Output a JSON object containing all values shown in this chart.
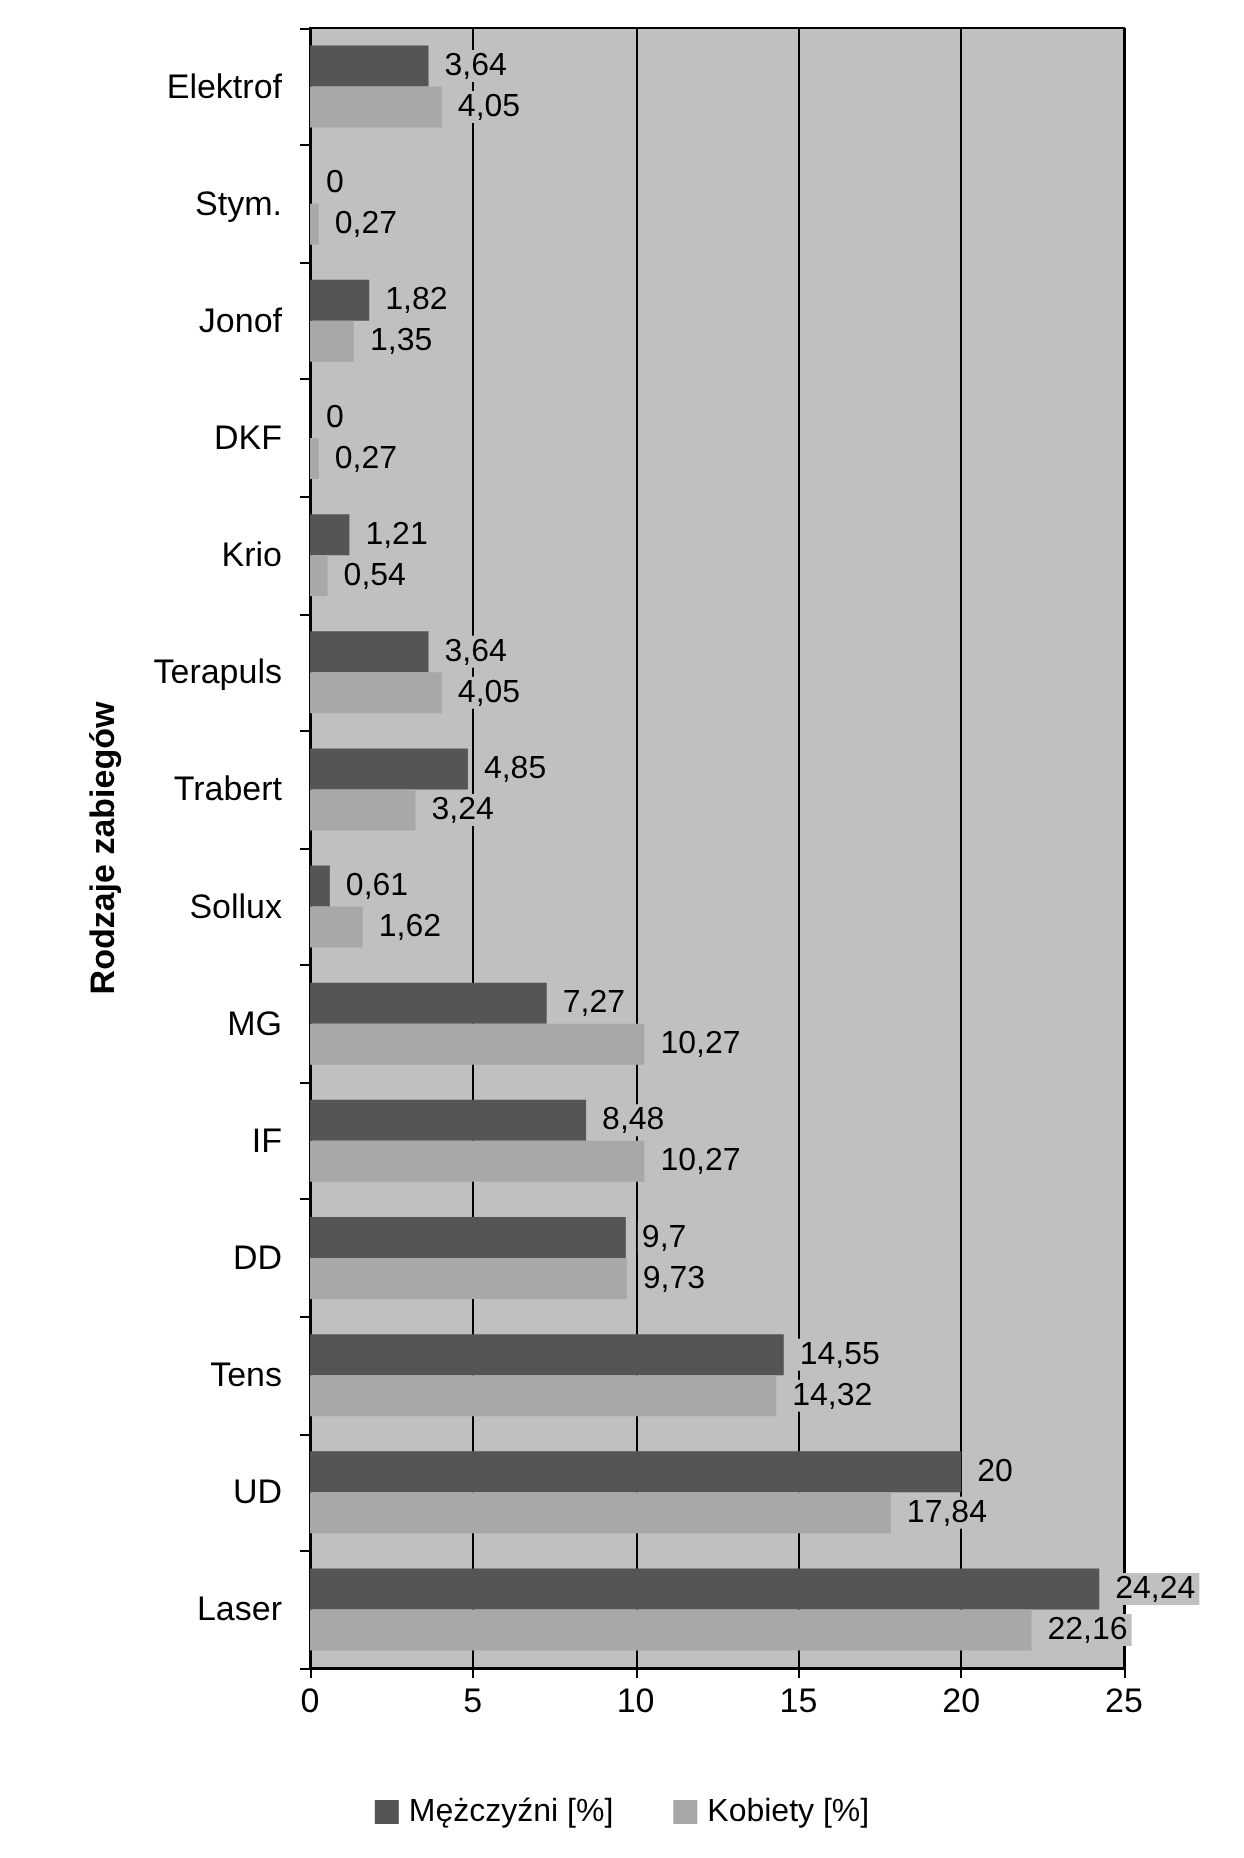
{
  "chart_data": {
    "type": "bar",
    "orientation": "horizontal",
    "ylabel": "Rodzaje zabiegów",
    "categories": [
      "Elektrof",
      "Stym.",
      "Jonof",
      "DKF",
      "Krio",
      "Terapuls",
      "Trabert",
      "Sollux",
      "MG",
      "IF",
      "DD",
      "Tens",
      "UD",
      "Laser"
    ],
    "series": [
      {
        "name": "Mężczyźni [%]",
        "color": "#555555",
        "values": [
          3.64,
          0,
          1.82,
          0,
          1.21,
          3.64,
          4.85,
          0.61,
          7.27,
          8.48,
          9.7,
          14.55,
          20,
          24.24
        ],
        "value_labels": [
          "3,64",
          "0",
          "1,82",
          "0",
          "1,21",
          "3,64",
          "4,85",
          "0,61",
          "7,27",
          "8,48",
          "9,7",
          "14,55",
          "20",
          "24,24"
        ]
      },
      {
        "name": "Kobiety [%]",
        "color": "#a8a8a8",
        "values": [
          4.05,
          0.27,
          1.35,
          0.27,
          0.54,
          4.05,
          3.24,
          1.62,
          10.27,
          10.27,
          9.73,
          14.32,
          17.84,
          22.16
        ],
        "value_labels": [
          "4,05",
          "0,27",
          "1,35",
          "0,27",
          "0,54",
          "4,05",
          "3,24",
          "1,62",
          "10,27",
          "10,27",
          "9,73",
          "14,32",
          "17,84",
          "22,16"
        ]
      }
    ],
    "xlim": [
      0,
      25
    ],
    "xticks": [
      0,
      5,
      10,
      15,
      20,
      25
    ],
    "grid": "x",
    "legend": "bottom"
  }
}
